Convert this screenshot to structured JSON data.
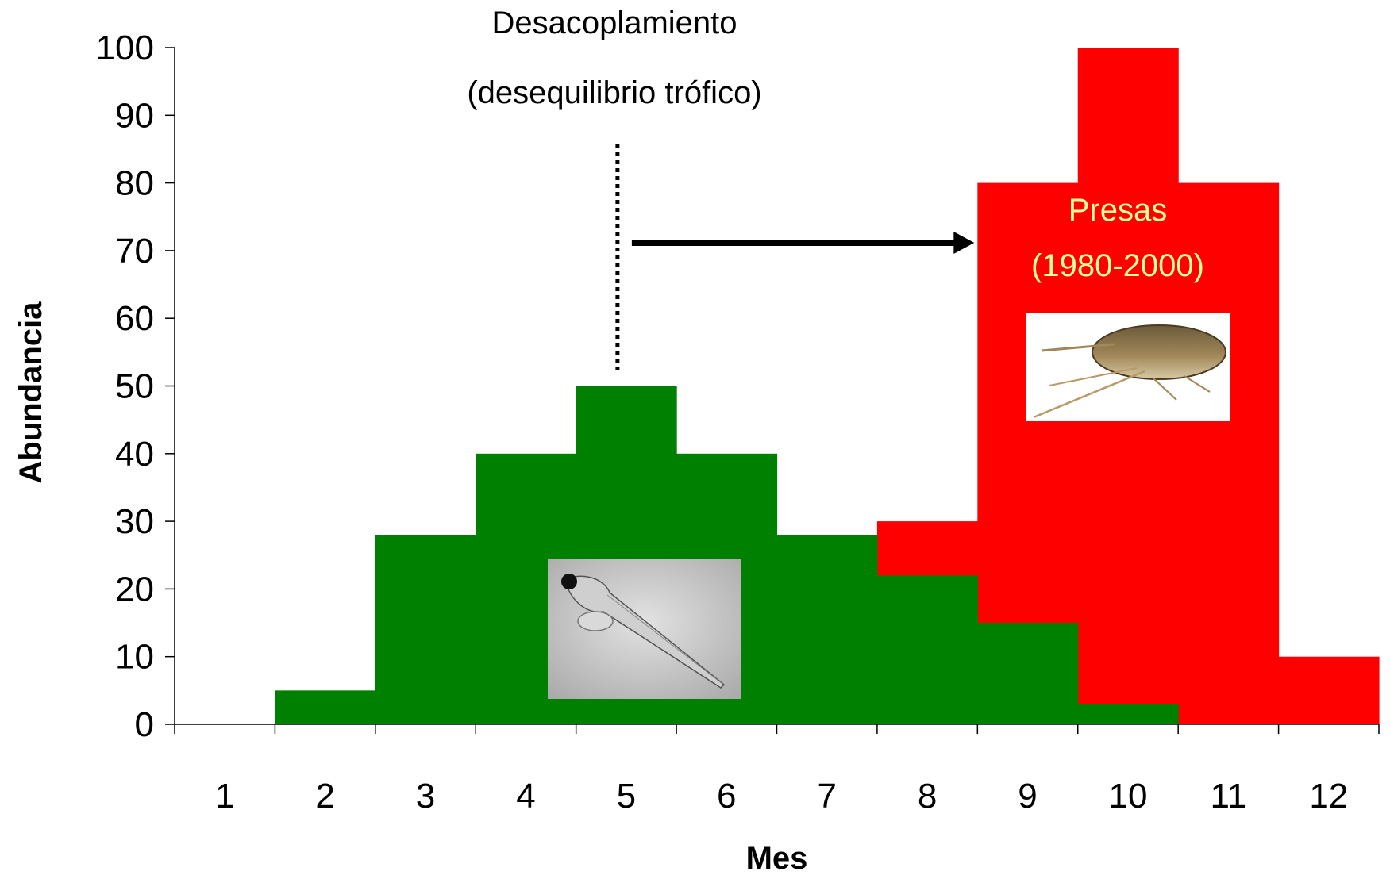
{
  "chart_data": {
    "type": "bar",
    "title": "",
    "xlabel": "Mes",
    "ylabel": "Abundancia",
    "categories": [
      "1",
      "2",
      "3",
      "4",
      "5",
      "6",
      "7",
      "8",
      "9",
      "10",
      "11",
      "12"
    ],
    "y_ticks": [
      "0",
      "10",
      "20",
      "30",
      "40",
      "50",
      "60",
      "70",
      "80",
      "90",
      "100"
    ],
    "ylim": [
      0,
      100
    ],
    "grid": false,
    "legend": "none",
    "series": [
      {
        "name": "Presas (1980-2000)",
        "color": "#ff0000",
        "values": [
          0,
          0,
          0,
          0,
          0,
          0,
          0,
          30,
          80,
          100,
          80,
          10
        ]
      },
      {
        "color": "#008000",
        "values": [
          0,
          5,
          28,
          40,
          50,
          40,
          28,
          22,
          15,
          3,
          0,
          0
        ]
      }
    ],
    "annotations": {
      "decoupling_line1": "Desacoplamiento",
      "decoupling_line2": "(desequilibrio trófico)",
      "decoupling_month": 5,
      "arrow_to_month": 9,
      "prey_label_line1": "Presas",
      "prey_label_line2": "(1980-2000)"
    },
    "images": [
      {
        "name": "fish-larva-photo",
        "depicts": "fish larva"
      },
      {
        "name": "copepod-photo",
        "depicts": "copepod"
      }
    ]
  }
}
